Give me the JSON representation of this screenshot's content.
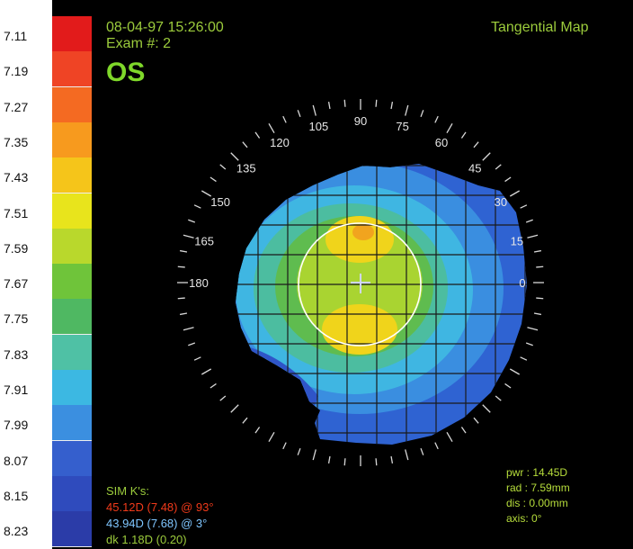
{
  "header": {
    "datetime": "08-04-97 15:26:00",
    "exam": "Exam #: 2",
    "eye": "OS",
    "map_type": "Tangential Map"
  },
  "scale": {
    "labels": [
      "7.11",
      "7.19",
      "7.27",
      "7.35",
      "7.43",
      "7.51",
      "7.59",
      "7.67",
      "7.75",
      "7.83",
      "7.91",
      "7.99",
      "8.07",
      "8.15",
      "8.23"
    ],
    "colors": [
      "#e21b1b",
      "#ef4425",
      "#f46a22",
      "#f79a1e",
      "#f5c51a",
      "#e8e41c",
      "#b9d82c",
      "#6fc43a",
      "#4fb862",
      "#4fc1a5",
      "#3cb8e2",
      "#3b8fe0",
      "#355fcd",
      "#2f4bbd",
      "#2b3ca8"
    ]
  },
  "axis": {
    "angle_labels": [
      "0",
      "15",
      "30",
      "45",
      "60",
      "75",
      "90",
      "105",
      "120",
      "135",
      "150",
      "165",
      "180"
    ]
  },
  "sim_k": {
    "title": "SIM K's:",
    "k1": "45.12D (7.48) @ 93°",
    "k2": "43.94D (7.68) @  3°",
    "dk": "dk  1.18D (0.20)"
  },
  "stats": {
    "pwr": "pwr : 14.45D",
    "rad": "rad : 7.59mm",
    "dis": "dis : 0.00mm",
    "axis": "axis:  0°"
  }
}
